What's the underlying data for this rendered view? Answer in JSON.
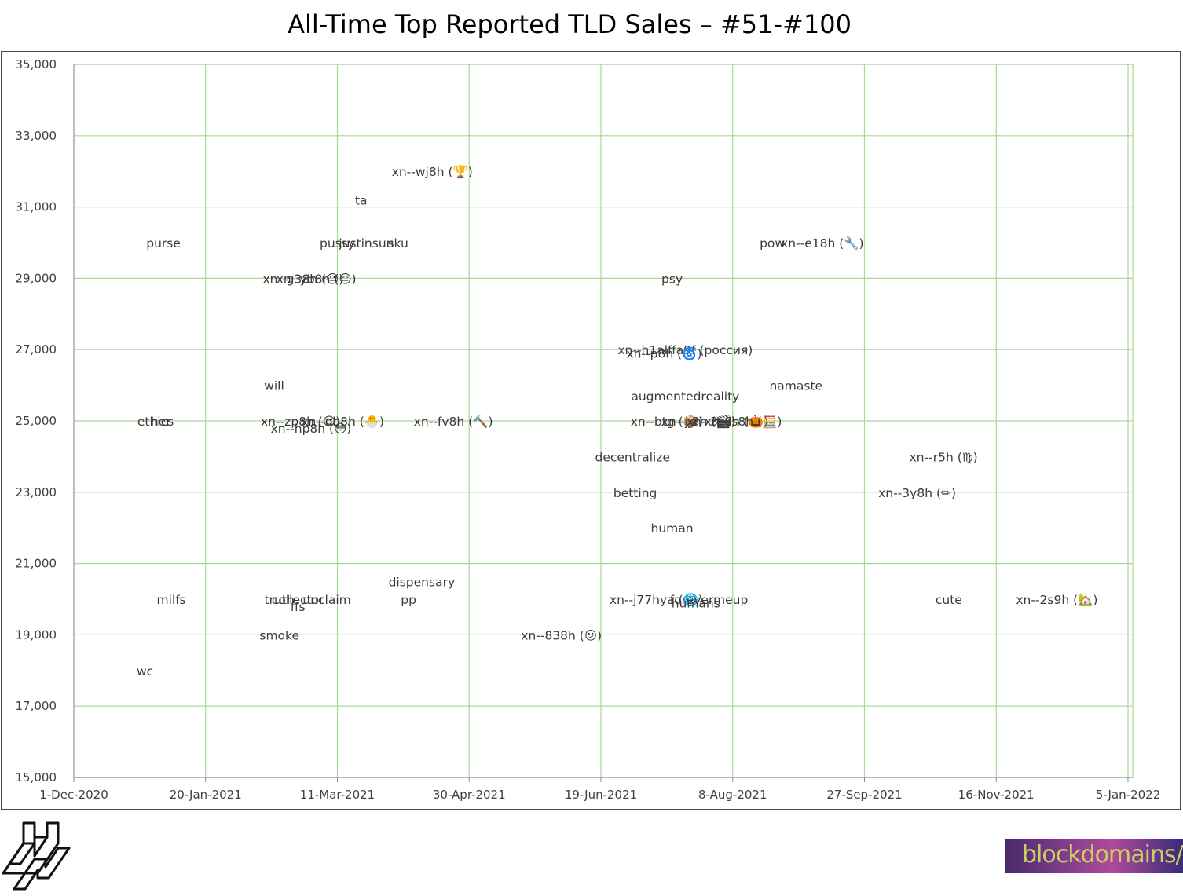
{
  "chart_data": {
    "type": "scatter",
    "title": "All-Time Top Reported TLD Sales – #51-#100",
    "xlabel": "",
    "ylabel": "",
    "xlim": [
      "2020-12-01",
      "2022-01-05"
    ],
    "ylim": [
      15000,
      35000
    ],
    "grid": true,
    "grid_color": "#a8d89a",
    "x_ticks": [
      "1-Dec-2020",
      "20-Jan-2021",
      "11-Mar-2021",
      "30-Apr-2021",
      "19-Jun-2021",
      "8-Aug-2021",
      "27-Sep-2021",
      "16-Nov-2021",
      "5-Jan-2022"
    ],
    "y_ticks": [
      "15,000",
      "17,000",
      "19,000",
      "21,000",
      "23,000",
      "25,000",
      "27,000",
      "29,000",
      "31,000",
      "33,000",
      "35,000"
    ],
    "points": [
      {
        "label": "purse",
        "date": "2021-01-04",
        "value": 30000
      },
      {
        "label": "ta",
        "date": "2021-03-20",
        "value": 31200
      },
      {
        "label": "xn--wj8h (🏆)",
        "date": "2021-04-16",
        "value": 32000
      },
      {
        "label": "pussy",
        "date": "2021-03-11",
        "value": 30000
      },
      {
        "label": "justinsun",
        "date": "2021-03-22",
        "value": 30000
      },
      {
        "label": "sku",
        "date": "2021-04-03",
        "value": 30000
      },
      {
        "label": "xn--g38h (😐)",
        "date": "2021-02-26",
        "value": 29000
      },
      {
        "label": "xn--yb8h (😑)",
        "date": "2021-03-03",
        "value": 29000
      },
      {
        "label": "will",
        "date": "2021-02-15",
        "value": 26000
      },
      {
        "label": "ethics",
        "date": "2021-01-01",
        "value": 25000
      },
      {
        "label": "her",
        "date": "2021-01-03",
        "value": 25000
      },
      {
        "label": "xn--zp8h (😊)",
        "date": "2021-02-25",
        "value": 25000
      },
      {
        "label": "xn--ob8h (🐣)",
        "date": "2021-03-13",
        "value": 25000
      },
      {
        "label": "xn--hp8h (😳)",
        "date": "2021-03-01",
        "value": 24800
      },
      {
        "label": "xn--fv8h (🔨)",
        "date": "2021-04-24",
        "value": 25000
      },
      {
        "label": "pow",
        "date": "2021-08-23",
        "value": 30000
      },
      {
        "label": "xn--e18h (🔧)",
        "date": "2021-09-11",
        "value": 30000
      },
      {
        "label": "psy",
        "date": "2021-07-16",
        "value": 29000
      },
      {
        "label": "xn--h1alffa9f (россия)",
        "date": "2021-07-21",
        "value": 27000
      },
      {
        "label": "xn--p8h (🌀)",
        "date": "2021-07-13",
        "value": 26900
      },
      {
        "label": "augmentedreality",
        "date": "2021-07-21",
        "value": 25700
      },
      {
        "label": "namaste",
        "date": "2021-09-01",
        "value": 26000
      },
      {
        "label": "xn--btg (📦)",
        "date": "2021-07-14",
        "value": 25000
      },
      {
        "label": "xn--jj8h (🎬)",
        "date": "2021-07-26",
        "value": 25000
      },
      {
        "label": "xn--3s8h (🎃)",
        "date": "2021-08-06",
        "value": 25000
      },
      {
        "label": "xn--is8h (🧮)",
        "date": "2021-08-12",
        "value": 25000
      },
      {
        "label": "decentralize",
        "date": "2021-07-01",
        "value": 24000
      },
      {
        "label": "xn--r5h (♍)",
        "date": "2021-10-27",
        "value": 24000
      },
      {
        "label": "betting",
        "date": "2021-07-02",
        "value": 23000
      },
      {
        "label": "xn--3y8h (✏)",
        "date": "2021-10-17",
        "value": 23000
      },
      {
        "label": "human",
        "date": "2021-07-16",
        "value": 22000
      },
      {
        "label": "milfs",
        "date": "2021-01-07",
        "value": 20000
      },
      {
        "label": "truth",
        "date": "2021-02-17",
        "value": 20000
      },
      {
        "label": "collector",
        "date": "2021-02-24",
        "value": 20000
      },
      {
        "label": "ffs",
        "date": "2021-02-24",
        "value": 19800
      },
      {
        "label": "unclaim",
        "date": "2021-03-07",
        "value": 20000
      },
      {
        "label": "dispensary",
        "date": "2021-04-12",
        "value": 20500
      },
      {
        "label": "pp",
        "date": "2021-04-07",
        "value": 20000
      },
      {
        "label": "xn--838h (😕)",
        "date": "2021-06-04",
        "value": 19000
      },
      {
        "label": "xn--j77hya (🌐)",
        "date": "2021-07-10",
        "value": 20000
      },
      {
        "label": "humans",
        "date": "2021-07-25",
        "value": 19900
      },
      {
        "label": "forevermeup",
        "date": "2021-07-30",
        "value": 20000
      },
      {
        "label": "cute",
        "date": "2021-10-29",
        "value": 20000
      },
      {
        "label": "xn--2s9h (🏡)",
        "date": "2021-12-09",
        "value": 20000
      },
      {
        "label": "smoke",
        "date": "2021-02-17",
        "value": 19000
      },
      {
        "label": "wc",
        "date": "2020-12-28",
        "value": 18000
      }
    ]
  },
  "logos": {
    "left_alt": "H logo",
    "right_text": "blockdomains/"
  }
}
